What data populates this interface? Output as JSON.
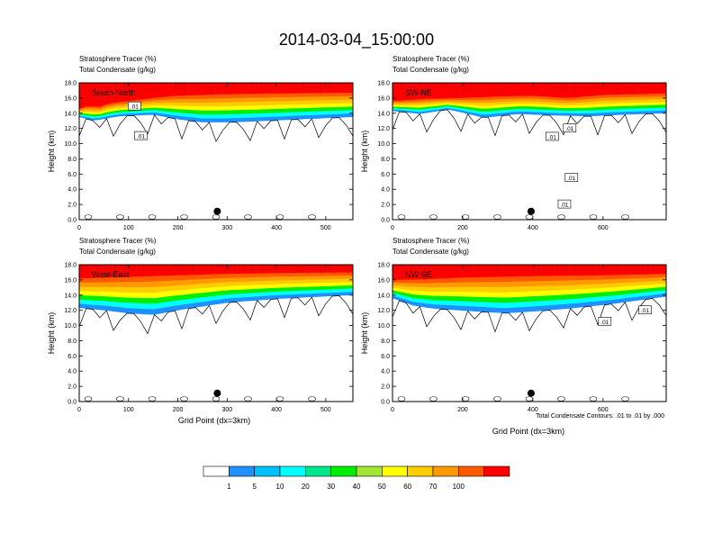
{
  "title": "2014-03-04_15:00:00",
  "panel_header": {
    "line1": "Stratosphere Tracer   (%)",
    "line2": "Total Condensate   (g/kg)"
  },
  "ylabel": "Height (km)",
  "xlabel": "Grid Point (dx=3km)",
  "contour_note": "Total Condensate Contours: .01 to .01 by .000",
  "colorbar": {
    "levels": [
      "1",
      "5",
      "10",
      "20",
      "30",
      "40",
      "50",
      "60",
      "70",
      "100"
    ],
    "colors": [
      "#ffffff",
      "#1e90ff",
      "#00bfff",
      "#00ffff",
      "#00e68c",
      "#00ee00",
      "#a0e632",
      "#ffff00",
      "#ffcc00",
      "#ff9900",
      "#ff5a00",
      "#ff0000"
    ]
  },
  "chart_data": [
    {
      "type": "heatmap",
      "section": "South-North",
      "xlim": [
        0,
        555
      ],
      "xticks": [
        0,
        100,
        200,
        300,
        400,
        500
      ],
      "ylim": [
        0,
        18
      ],
      "yticks": [
        0,
        2,
        4,
        6,
        8,
        10,
        12,
        14,
        16,
        18
      ],
      "marker": {
        "x": 280,
        "y": 1.1
      },
      "contour_labels": [
        {
          "text": ".01",
          "x": 112,
          "y": 14.9
        },
        {
          "text": ".01",
          "x": 125,
          "y": 11.0
        }
      ],
      "tracer_top": [
        [
          0,
          14.6
        ],
        [
          20,
          15.0
        ],
        [
          40,
          14.8
        ],
        [
          60,
          15.3
        ],
        [
          100,
          15.6
        ],
        [
          150,
          16.0
        ],
        [
          200,
          16.3
        ],
        [
          300,
          16.5
        ],
        [
          400,
          16.6
        ],
        [
          555,
          16.7
        ]
      ],
      "tracer_bottom": [
        [
          0,
          13.5
        ],
        [
          30,
          13.0
        ],
        [
          80,
          13.6
        ],
        [
          150,
          13.8
        ],
        [
          200,
          13.2
        ],
        [
          250,
          12.8
        ],
        [
          300,
          12.8
        ],
        [
          350,
          12.9
        ],
        [
          450,
          13.2
        ],
        [
          555,
          13.5
        ]
      ]
    },
    {
      "type": "heatmap",
      "section": "SW-NE",
      "xlim": [
        0,
        780
      ],
      "xticks": [
        0,
        200,
        400,
        600
      ],
      "ylim": [
        0,
        18
      ],
      "yticks": [
        0,
        2,
        4,
        6,
        8,
        10,
        12,
        14,
        16,
        18
      ],
      "marker": {
        "x": 395,
        "y": 1.1
      },
      "contour_labels": [
        {
          "text": ".01",
          "x": 505,
          "y": 12.0
        },
        {
          "text": ".01",
          "x": 455,
          "y": 10.9
        },
        {
          "text": ".01",
          "x": 510,
          "y": 5.5
        },
        {
          "text": ".01",
          "x": 490,
          "y": 2.0
        }
      ],
      "tracer_top": [
        [
          0,
          15.6
        ],
        [
          100,
          15.9
        ],
        [
          200,
          16.0
        ],
        [
          300,
          16.2
        ],
        [
          400,
          16.3
        ],
        [
          500,
          16.0
        ],
        [
          600,
          16.4
        ],
        [
          780,
          16.6
        ]
      ],
      "tracer_bottom": [
        [
          0,
          14.3
        ],
        [
          80,
          13.9
        ],
        [
          160,
          14.5
        ],
        [
          260,
          13.4
        ],
        [
          360,
          13.9
        ],
        [
          460,
          13.7
        ],
        [
          560,
          13.6
        ],
        [
          660,
          13.8
        ],
        [
          780,
          14.0
        ]
      ]
    },
    {
      "type": "heatmap",
      "section": "West-East",
      "xlim": [
        0,
        555
      ],
      "xticks": [
        0,
        100,
        200,
        300,
        400,
        500
      ],
      "ylim": [
        0,
        18
      ],
      "yticks": [
        0,
        2,
        4,
        6,
        8,
        10,
        12,
        14,
        16,
        18
      ],
      "marker": {
        "x": 280,
        "y": 1.1
      },
      "contour_labels": [],
      "tracer_top": [
        [
          0,
          16.2
        ],
        [
          100,
          16.4
        ],
        [
          200,
          16.6
        ],
        [
          300,
          16.8
        ],
        [
          400,
          16.9
        ],
        [
          555,
          17.0
        ]
      ],
      "tracer_bottom": [
        [
          0,
          12.3
        ],
        [
          50,
          12.0
        ],
        [
          100,
          11.6
        ],
        [
          150,
          11.4
        ],
        [
          200,
          12.0
        ],
        [
          250,
          12.5
        ],
        [
          300,
          13.0
        ],
        [
          400,
          13.5
        ],
        [
          555,
          14.0
        ]
      ]
    },
    {
      "type": "heatmap",
      "section": "NW-SE",
      "xlim": [
        0,
        780
      ],
      "xticks": [
        0,
        200,
        400,
        600
      ],
      "ylim": [
        0,
        18
      ],
      "yticks": [
        0,
        2,
        4,
        6,
        8,
        10,
        12,
        14,
        16,
        18
      ],
      "marker": {
        "x": 395,
        "y": 1.1
      },
      "contour_labels": [
        {
          "text": ".01",
          "x": 720,
          "y": 12.0
        },
        {
          "text": ".01",
          "x": 605,
          "y": 10.5
        }
      ],
      "tracer_top": [
        [
          0,
          16.0
        ],
        [
          100,
          16.1
        ],
        [
          200,
          16.3
        ],
        [
          300,
          16.4
        ],
        [
          400,
          16.5
        ],
        [
          600,
          16.6
        ],
        [
          780,
          16.8
        ]
      ],
      "tracer_bottom": [
        [
          0,
          13.6
        ],
        [
          60,
          12.6
        ],
        [
          120,
          12.2
        ],
        [
          220,
          11.9
        ],
        [
          320,
          11.6
        ],
        [
          420,
          11.9
        ],
        [
          520,
          12.3
        ],
        [
          620,
          12.8
        ],
        [
          700,
          13.3
        ],
        [
          780,
          13.8
        ]
      ]
    }
  ]
}
